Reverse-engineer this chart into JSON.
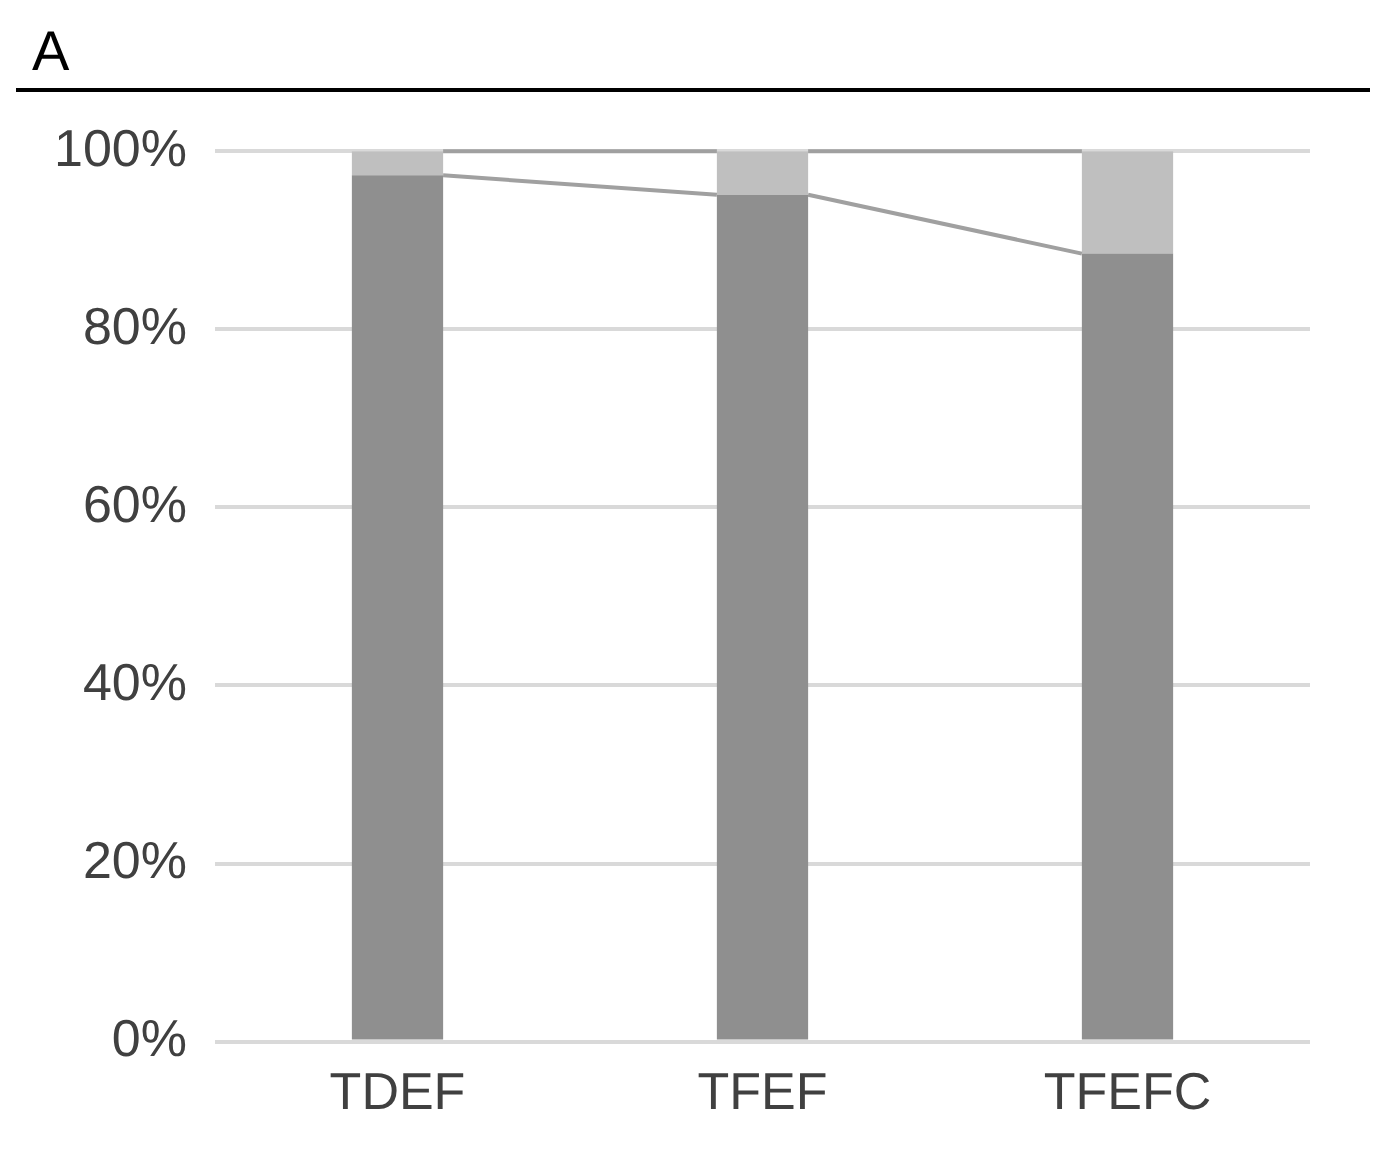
{
  "chart_data": {
    "type": "bar",
    "title": "A",
    "stacked": true,
    "categories": [
      "TDEF",
      "TFEF",
      "TFEFC"
    ],
    "series": [
      {
        "color": "#8f8f8f",
        "values": [
          97.3,
          95.1,
          88.5
        ]
      },
      {
        "color": "#bfbfbf",
        "values": [
          2.7,
          4.9,
          11.5
        ]
      }
    ],
    "ylim": [
      0,
      100
    ],
    "yticks": [
      {
        "value": 0,
        "label": "0%"
      },
      {
        "value": 20,
        "label": "20%"
      },
      {
        "value": 40,
        "label": "40%"
      },
      {
        "value": 60,
        "label": "60%"
      },
      {
        "value": 80,
        "label": "80%"
      },
      {
        "value": 100,
        "label": "100%"
      }
    ],
    "grid": "y",
    "legend": false
  }
}
